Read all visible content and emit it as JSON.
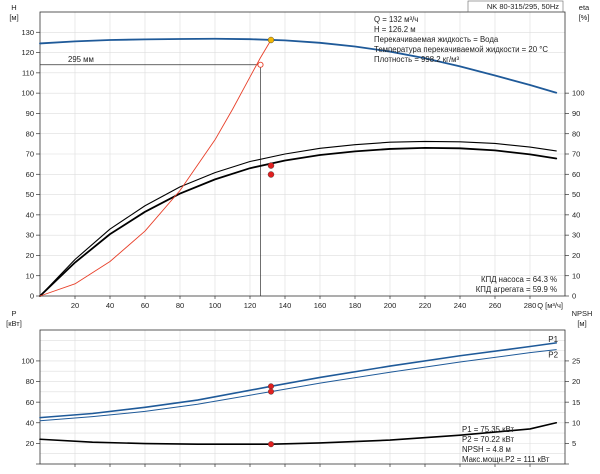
{
  "chart_data": [
    {
      "type": "line",
      "title": "NK 80-315/295, 50Hz",
      "xlabel": "Q [м³/ч]",
      "ylabel": "H [м]",
      "y2label": "eta [%]",
      "xlim": [
        0,
        300
      ],
      "ylim": [
        0,
        140
      ],
      "y2lim": [
        0,
        140
      ],
      "xticks": [
        20,
        40,
        60,
        80,
        100,
        120,
        140,
        160,
        180,
        200,
        220,
        240,
        260,
        280
      ],
      "yticks": [
        0,
        10,
        20,
        30,
        40,
        50,
        60,
        70,
        80,
        90,
        100,
        110,
        120,
        130
      ],
      "y2ticks": [
        0,
        10,
        20,
        30,
        40,
        50,
        60,
        70,
        80,
        90,
        100
      ],
      "grid": true,
      "impeller_label": "295 мм",
      "info_lines": [
        "Q = 132 м³/ч",
        "H = 126.2 м",
        "Перекачиваемая жидкость = Вода",
        "Температура перекачиваемой жидкости = 20 °C",
        "Плотность = 998.2 кг/м³"
      ],
      "efficiency_lines": [
        "КПД насоса = 64.3 %",
        "КПД агрегата = 59.9 %"
      ],
      "series": [
        {
          "color": "#1f5a99",
          "x": [
            0,
            20,
            40,
            60,
            80,
            100,
            120,
            140,
            160,
            180,
            200,
            220,
            240,
            260,
            280,
            295
          ],
          "y": [
            124.5,
            125.5,
            126.2,
            126.5,
            126.7,
            126.8,
            126.6,
            126.0,
            124.8,
            123.0,
            120.5,
            117.2,
            113.2,
            108.7,
            104.0,
            100.2
          ]
        },
        {
          "color": "#000000",
          "x": [
            0,
            20,
            40,
            60,
            80,
            100,
            120,
            140,
            160,
            180,
            200,
            220,
            240,
            260,
            280,
            295
          ],
          "y": [
            0,
            16.5,
            30.5,
            41.5,
            50.5,
            57.5,
            63.0,
            66.8,
            69.5,
            71.3,
            72.5,
            73.0,
            72.8,
            71.8,
            69.8,
            67.8
          ]
        },
        {
          "color": "#000000",
          "x": [
            0,
            20,
            40,
            60,
            80,
            100,
            120,
            140,
            160,
            180,
            200,
            220,
            240,
            260,
            280,
            295
          ],
          "y": [
            0,
            18.0,
            33.0,
            44.5,
            53.8,
            60.8,
            66.3,
            70.0,
            72.8,
            74.6,
            75.8,
            76.2,
            76.0,
            75.2,
            73.4,
            71.5
          ]
        },
        {
          "color": "#e8402a",
          "x": [
            0,
            20,
            40,
            60,
            80,
            100,
            110,
            120,
            126,
            132
          ],
          "y": [
            0,
            6.0,
            17.0,
            32.0,
            52.0,
            77.0,
            92.0,
            108.0,
            117.5,
            126.2
          ]
        }
      ],
      "markers": [
        {
          "x": 132,
          "y": 126.2,
          "color": "#f2b705"
        },
        {
          "x": 132,
          "y": 64.3,
          "color": "#e02020"
        },
        {
          "x": 132,
          "y": 59.9,
          "color": "#e02020"
        },
        {
          "x": 126,
          "y": 114,
          "color": "#e8402a"
        }
      ],
      "reference": {
        "x": 126,
        "y": 114
      }
    },
    {
      "type": "line",
      "xlabel": "",
      "ylabel": "P [кВт]",
      "y2label": "NPSH [м]",
      "xlim": [
        0,
        300
      ],
      "ylim": [
        0,
        130
      ],
      "y2lim": [
        0,
        32.5
      ],
      "yticks": [
        0,
        20,
        40,
        60,
        80,
        100
      ],
      "y2ticks": [
        0,
        5,
        10,
        15,
        20,
        25
      ],
      "grid": true,
      "info_lines": [
        "P1 = 75.35 кВт",
        "P2 = 70.22 кВт",
        "NPSH = 4.8 м",
        "Макс.мощн.P2 = 111 кВт"
      ],
      "series": [
        {
          "name": "P1",
          "color": "#1f5a99",
          "x": [
            0,
            30,
            60,
            90,
            132,
            160,
            200,
            240,
            280,
            295
          ],
          "y": [
            45,
            49,
            55,
            62,
            75.35,
            84,
            95,
            105,
            114,
            117.5
          ]
        },
        {
          "name": "P2",
          "color": "#1f5a99",
          "x": [
            0,
            30,
            60,
            90,
            132,
            160,
            200,
            240,
            280,
            295
          ],
          "y": [
            42,
            46,
            51,
            58,
            70.22,
            78.5,
            89,
            99,
            108,
            111
          ]
        },
        {
          "color": "#000000",
          "x": [
            0,
            30,
            60,
            90,
            132,
            160,
            200,
            240,
            280,
            295
          ],
          "y2": [
            6.0,
            5.3,
            4.95,
            4.8,
            4.8,
            5.1,
            5.8,
            7.0,
            8.5,
            10.0
          ]
        }
      ],
      "markers": [
        {
          "x": 132,
          "y": 75.35,
          "color": "#e02020"
        },
        {
          "x": 132,
          "y": 70.22,
          "color": "#e02020"
        },
        {
          "x": 132,
          "y2": 4.8,
          "color": "#e02020"
        }
      ]
    }
  ]
}
